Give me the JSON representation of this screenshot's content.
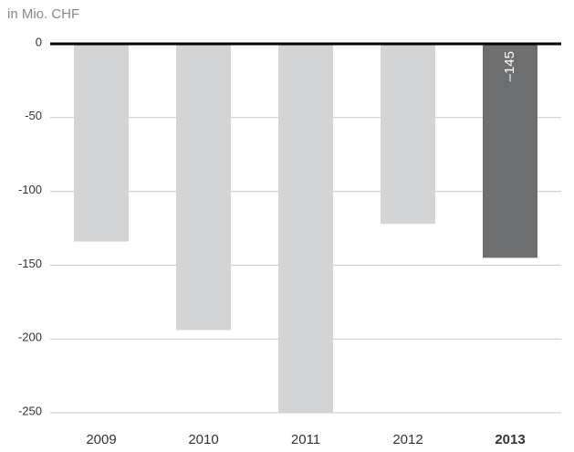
{
  "chart_data": {
    "type": "bar",
    "axis_label": "in Mio. CHF",
    "categories": [
      "2009",
      "2010",
      "2011",
      "2012",
      "2013"
    ],
    "values": [
      -134,
      -194,
      -250,
      -122,
      -145
    ],
    "value_labels": [
      null,
      null,
      null,
      null,
      "–145"
    ],
    "colors": [
      "#d3d4d5",
      "#d3d4d5",
      "#d3d4d5",
      "#d3d4d5",
      "#6d6e70"
    ],
    "ylim": [
      -250,
      0
    ],
    "yticks": [
      0,
      -50,
      -100,
      -150,
      -200,
      -250
    ],
    "grid": true
  }
}
